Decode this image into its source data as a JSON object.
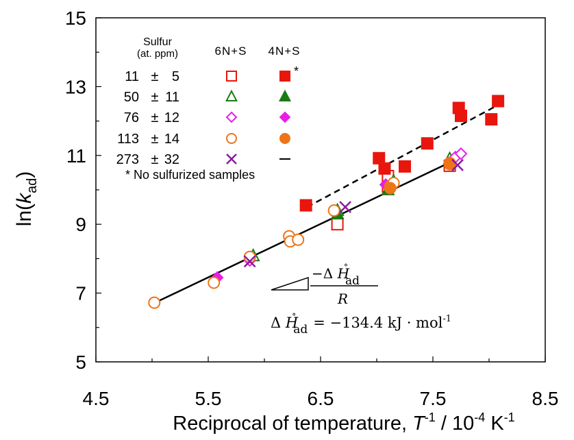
{
  "chart_data": {
    "type": "scatter",
    "title": "",
    "xlabel": {
      "prefix": "Reciprocal of temperature, ",
      "var": "T",
      "exp1": "-1",
      "mid": " / 10",
      "exp2": "-4",
      "unit": " K",
      "exp3": "-1"
    },
    "ylabel": {
      "main": "ln(",
      "var": "k",
      "sub": "ad",
      "close": ")"
    },
    "xlim": [
      4.5,
      8.5
    ],
    "ylim": [
      5,
      15
    ],
    "xticks": [
      "4.5",
      "5.5",
      "6.5",
      "7.5",
      "8.5"
    ],
    "yticks": [
      "5",
      "7",
      "9",
      "11",
      "13",
      "15"
    ],
    "xtick_values": [
      4.5,
      5.5,
      6.5,
      7.5,
      8.5
    ],
    "ytick_values": [
      5,
      7,
      9,
      11,
      13,
      15
    ],
    "x_minor_step": 0.5,
    "y_minor_step": 1,
    "legend": {
      "header_sulfur": "Sulfur",
      "header_unit": "(at. ppm)",
      "header_6n": "6N+S",
      "header_4n": "4N+S",
      "rows": [
        {
          "value": "11",
          "pm": "±",
          "err": "5",
          "color": "#e8160c",
          "marker": "square",
          "note": "*"
        },
        {
          "value": "50",
          "pm": "±",
          "err": "11",
          "color": "#1a7a16",
          "marker": "triangle",
          "note": ""
        },
        {
          "value": "76",
          "pm": "±",
          "err": "12",
          "color": "#e81ee8",
          "marker": "diamond",
          "note": ""
        },
        {
          "value": "113",
          "pm": "±",
          "err": "14",
          "color": "#ee7417",
          "marker": "circle",
          "note": ""
        },
        {
          "value": "273",
          "pm": "±",
          "err": "32",
          "color": "#8a1a9e",
          "marker": "x",
          "note": ""
        }
      ],
      "footnote": "* No sulfurized samples"
    },
    "series": [
      {
        "name": "11 ± 5 (6N+S)",
        "marker": "square",
        "filled": false,
        "color": "#e8160c",
        "points": [
          [
            6.65,
            9.0
          ],
          [
            7.1,
            10.4
          ],
          [
            7.1,
            10.1
          ],
          [
            7.65,
            10.7
          ]
        ]
      },
      {
        "name": "11 ± 5 (4N+S)",
        "marker": "square",
        "filled": true,
        "color": "#e8160c",
        "points": [
          [
            6.37,
            9.55
          ],
          [
            7.02,
            10.92
          ],
          [
            7.07,
            10.62
          ],
          [
            7.25,
            10.68
          ],
          [
            7.45,
            11.35
          ],
          [
            7.73,
            12.38
          ],
          [
            7.75,
            12.15
          ],
          [
            8.02,
            12.05
          ],
          [
            8.08,
            12.58
          ]
        ]
      },
      {
        "name": "50 ± 11 (6N+S)",
        "marker": "triangle",
        "filled": false,
        "color": "#1a7a16",
        "points": [
          [
            5.9,
            8.08
          ],
          [
            6.65,
            9.4
          ],
          [
            7.15,
            10.25
          ],
          [
            7.65,
            10.9
          ]
        ]
      },
      {
        "name": "50 ± 11 (4N+S)",
        "marker": "triangle",
        "filled": true,
        "color": "#1a7a16",
        "points": [
          [
            6.65,
            9.3
          ],
          [
            7.1,
            10.0
          ]
        ]
      },
      {
        "name": "76 ± 12 (6N+S)",
        "marker": "diamond",
        "filled": false,
        "color": "#e81ee8",
        "points": [
          [
            5.87,
            7.95
          ],
          [
            7.7,
            10.95
          ],
          [
            7.75,
            11.05
          ]
        ]
      },
      {
        "name": "76 ± 12 (4N+S)",
        "marker": "diamond",
        "filled": true,
        "color": "#e81ee8",
        "points": [
          [
            5.58,
            7.45
          ],
          [
            7.08,
            10.15
          ]
        ]
      },
      {
        "name": "113 ± 14 (6N+S)",
        "marker": "circle",
        "filled": false,
        "color": "#ee7417",
        "points": [
          [
            5.02,
            6.72
          ],
          [
            5.55,
            7.3
          ],
          [
            5.87,
            8.05
          ],
          [
            6.22,
            8.65
          ],
          [
            6.23,
            8.5
          ],
          [
            6.3,
            8.55
          ],
          [
            6.62,
            9.4
          ],
          [
            7.12,
            10.1
          ],
          [
            7.15,
            10.2
          ],
          [
            7.65,
            10.75
          ]
        ]
      },
      {
        "name": "113 ± 14 (4N+S)",
        "marker": "circle",
        "filled": true,
        "color": "#ee7417",
        "points": [
          [
            7.12,
            10.05
          ],
          [
            7.65,
            10.78
          ]
        ]
      },
      {
        "name": "273 ± 32 (6N+S)",
        "marker": "x",
        "filled": false,
        "color": "#8a1a9e",
        "points": [
          [
            5.87,
            7.92
          ],
          [
            6.72,
            9.5
          ],
          [
            7.72,
            10.72
          ]
        ]
      }
    ],
    "fit_lines": [
      {
        "name": "fit-solid",
        "style": "solid",
        "x": [
          5.0,
          7.75
        ],
        "y": [
          6.68,
          10.95
        ]
      },
      {
        "name": "fit-dashed",
        "style": "dashed",
        "x": [
          6.38,
          8.1
        ],
        "y": [
          9.5,
          12.5
        ]
      }
    ],
    "annotation": {
      "delta": "Δ",
      "h_letter": "H",
      "degree": "°",
      "sub_ad": "ad",
      "minus": "−",
      "r_letter": "R",
      "equation": "= −134.4 kJ · mol",
      "equation_exp": "-1"
    }
  }
}
